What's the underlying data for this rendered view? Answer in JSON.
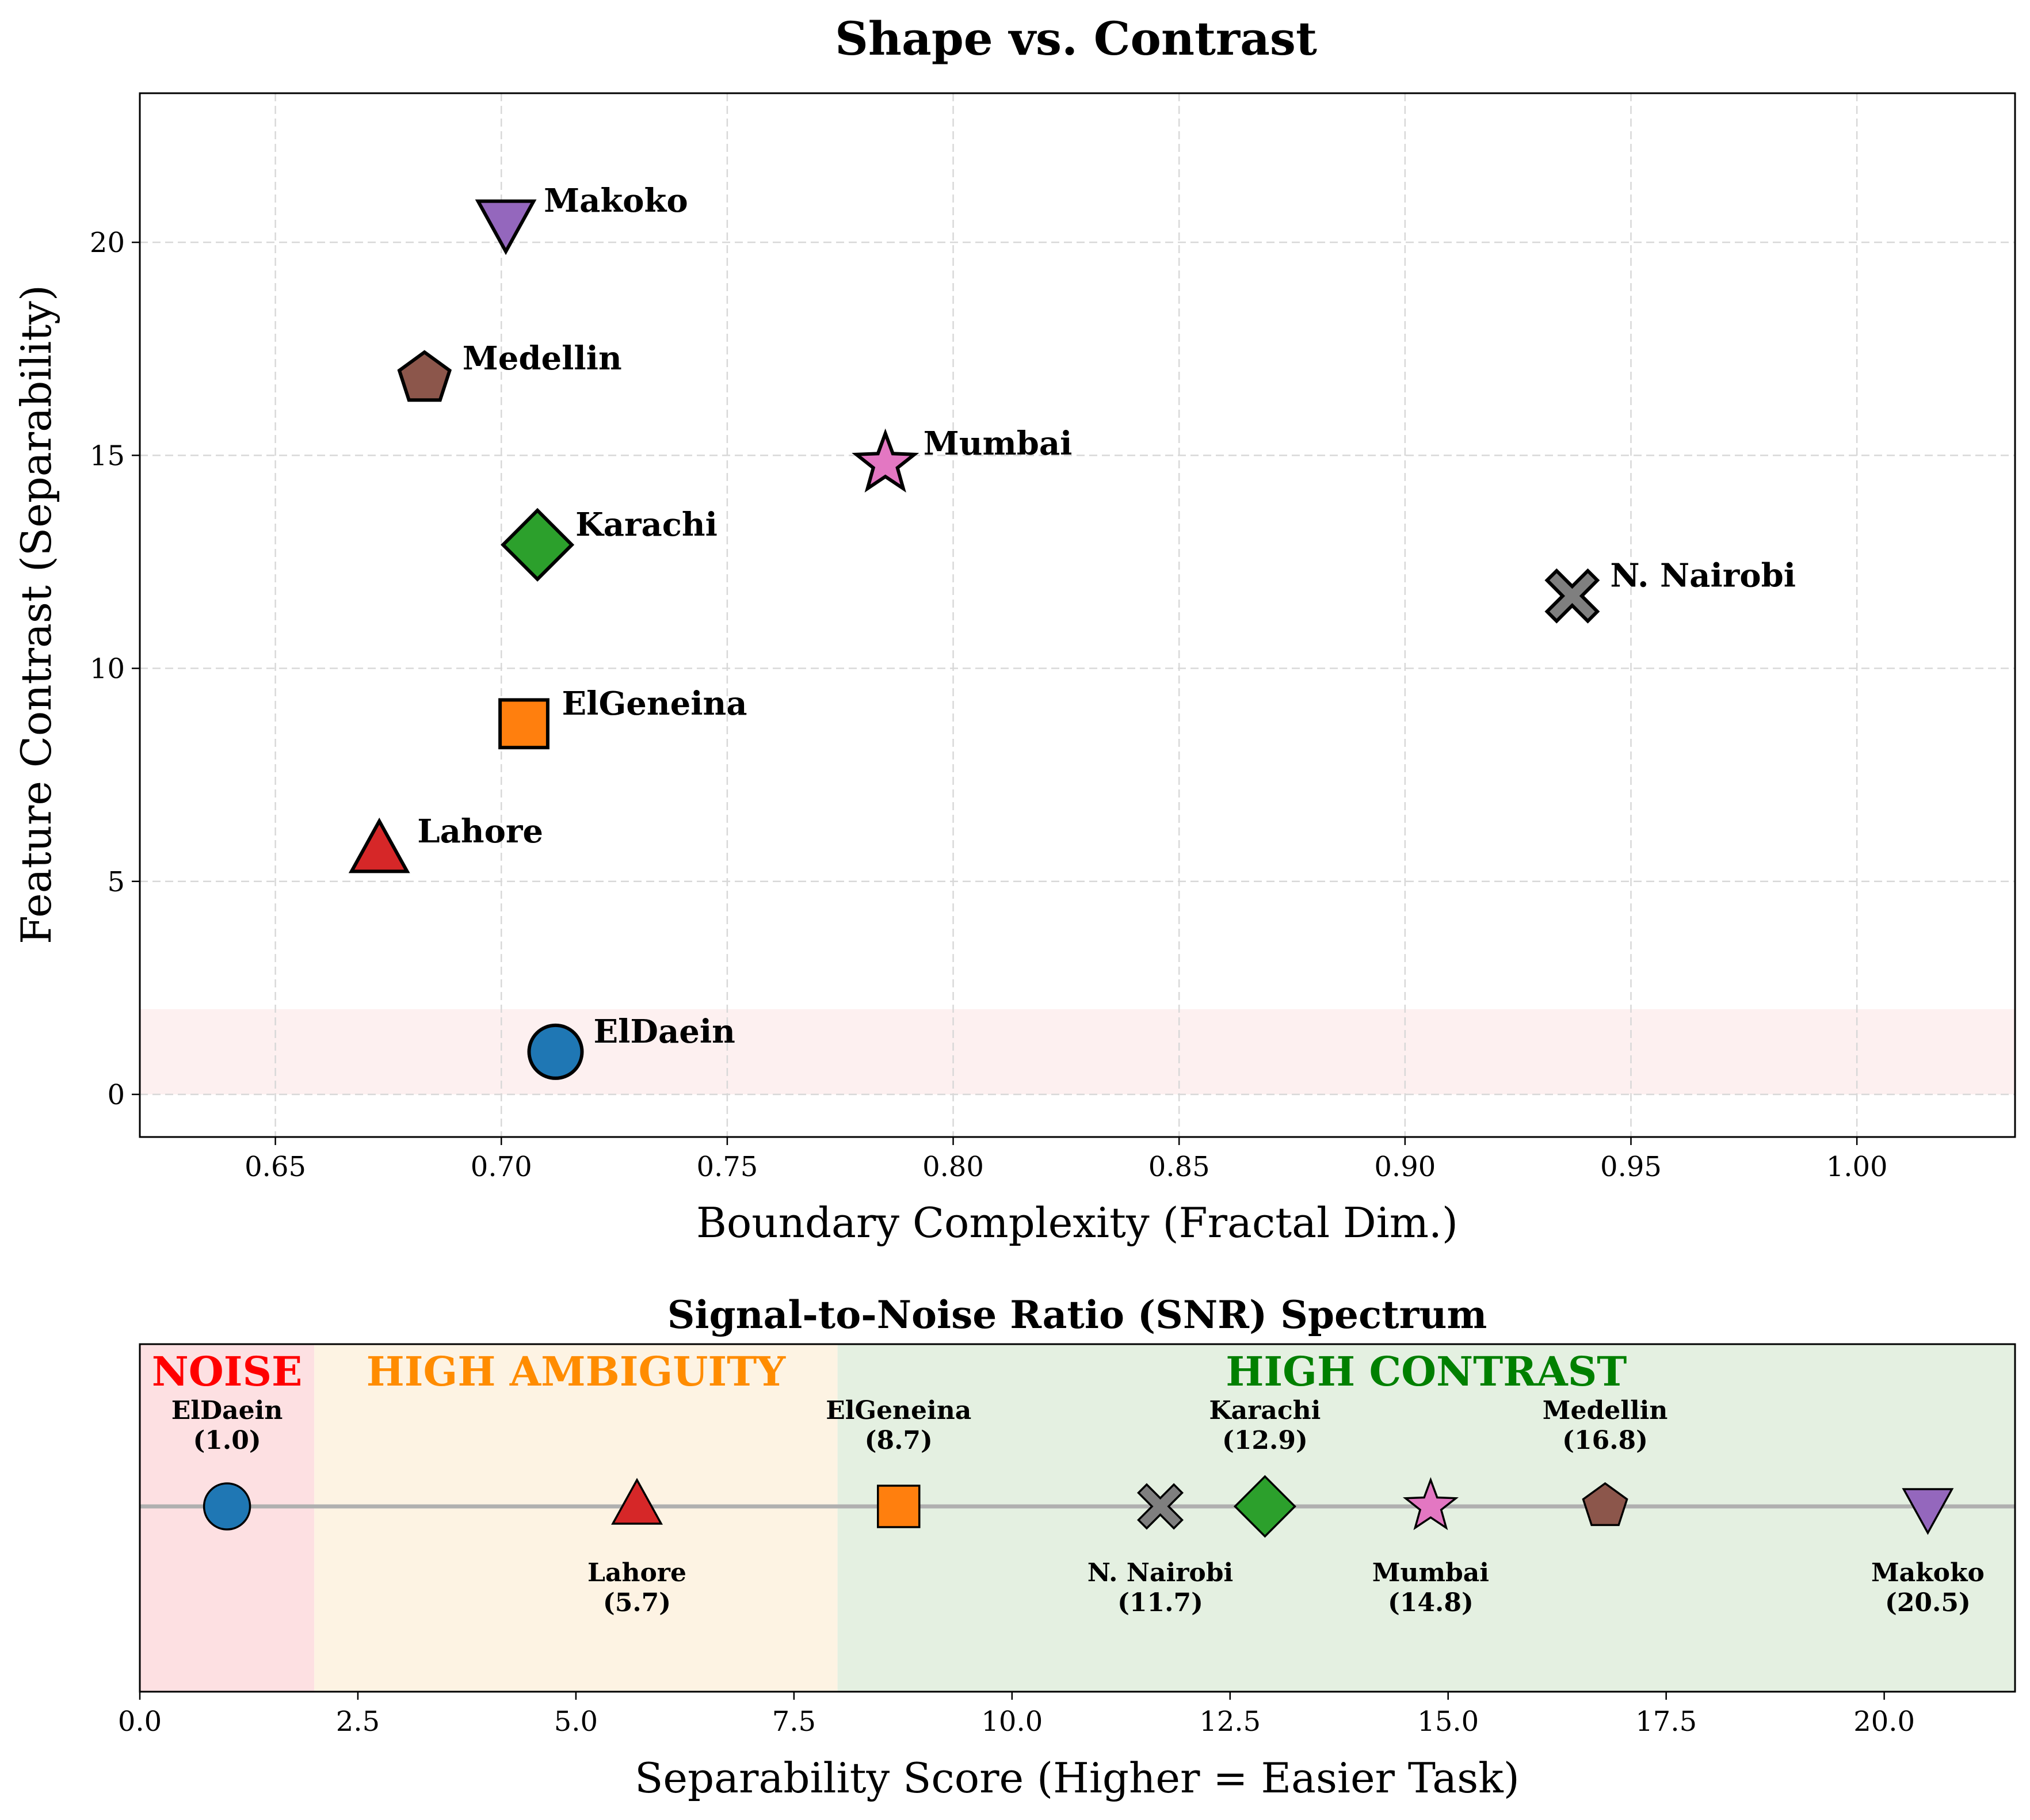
{
  "chart_data": [
    {
      "type": "scatter",
      "title": "Shape vs. Contrast",
      "xlabel": "Boundary Complexity (Fractal Dim.)",
      "ylabel": "Feature Contrast (Separability)",
      "xlim": [
        0.62,
        1.035
      ],
      "ylim": [
        -1.0,
        23.5
      ],
      "xticks": [
        "0.65",
        "0.70",
        "0.75",
        "0.80",
        "0.85",
        "0.90",
        "0.95",
        "1.00"
      ],
      "yticks": [
        "0",
        "5",
        "10",
        "15",
        "20"
      ],
      "grid": true,
      "shaded_band": {
        "y0": 0,
        "y1": 2,
        "color": "#fdf0f0"
      },
      "points": [
        {
          "name": "ElDaein",
          "x": 0.712,
          "y": 1.0,
          "marker": "circle",
          "color": "#1f77b4"
        },
        {
          "name": "Lahore",
          "x": 0.673,
          "y": 5.7,
          "marker": "triangle-up",
          "color": "#d62728"
        },
        {
          "name": "ElGeneina",
          "x": 0.705,
          "y": 8.7,
          "marker": "square",
          "color": "#ff7f0e"
        },
        {
          "name": "N. Nairobi",
          "x": 0.937,
          "y": 11.7,
          "marker": "x",
          "color": "#7f7f7f"
        },
        {
          "name": "Karachi",
          "x": 0.708,
          "y": 12.9,
          "marker": "diamond",
          "color": "#2ca02c"
        },
        {
          "name": "Mumbai",
          "x": 0.785,
          "y": 14.8,
          "marker": "star",
          "color": "#e377c2"
        },
        {
          "name": "Medellin",
          "x": 0.683,
          "y": 16.8,
          "marker": "pentagon",
          "color": "#8c564b"
        },
        {
          "name": "Makoko",
          "x": 0.701,
          "y": 20.5,
          "marker": "triangle-down",
          "color": "#9467bd"
        }
      ]
    },
    {
      "type": "scatter",
      "title": "Signal-to-Noise Ratio (SNR) Spectrum",
      "xlabel": "Separability Score (Higher = Easier Task)",
      "xlim": [
        0.0,
        21.5
      ],
      "xticks": [
        "0.0",
        "2.5",
        "5.0",
        "7.5",
        "10.0",
        "12.5",
        "15.0",
        "17.5",
        "20.0"
      ],
      "regions": [
        {
          "label": "NOISE",
          "x0": 0,
          "x1": 2,
          "fill": "#fde0e2",
          "text_color": "#ff0000"
        },
        {
          "label": "HIGH AMBIGUITY",
          "x0": 2,
          "x1": 8,
          "fill": "#fdf3e3",
          "text_color": "#ff8c00"
        },
        {
          "label": "HIGH CONTRAST",
          "x0": 8,
          "x1": 21.5,
          "fill": "#e4f0e1",
          "text_color": "#008000"
        }
      ],
      "points": [
        {
          "name": "ElDaein",
          "value": 1.0,
          "value_text": "(1.0)",
          "label_side": "above",
          "marker": "circle",
          "color": "#1f77b4"
        },
        {
          "name": "Lahore",
          "value": 5.7,
          "value_text": "(5.7)",
          "label_side": "below",
          "marker": "triangle-up",
          "color": "#d62728"
        },
        {
          "name": "ElGeneina",
          "value": 8.7,
          "value_text": "(8.7)",
          "label_side": "above",
          "marker": "square",
          "color": "#ff7f0e"
        },
        {
          "name": "N. Nairobi",
          "value": 11.7,
          "value_text": "(11.7)",
          "label_side": "below",
          "marker": "x",
          "color": "#7f7f7f"
        },
        {
          "name": "Karachi",
          "value": 12.9,
          "value_text": "(12.9)",
          "label_side": "above",
          "marker": "diamond",
          "color": "#2ca02c"
        },
        {
          "name": "Mumbai",
          "value": 14.8,
          "value_text": "(14.8)",
          "label_side": "below",
          "marker": "star",
          "color": "#e377c2"
        },
        {
          "name": "Medellin",
          "value": 16.8,
          "value_text": "(16.8)",
          "label_side": "above",
          "marker": "pentagon",
          "color": "#8c564b"
        },
        {
          "name": "Makoko",
          "value": 20.5,
          "value_text": "(20.5)",
          "label_side": "below",
          "marker": "triangle-down",
          "color": "#9467bd"
        }
      ]
    }
  ]
}
